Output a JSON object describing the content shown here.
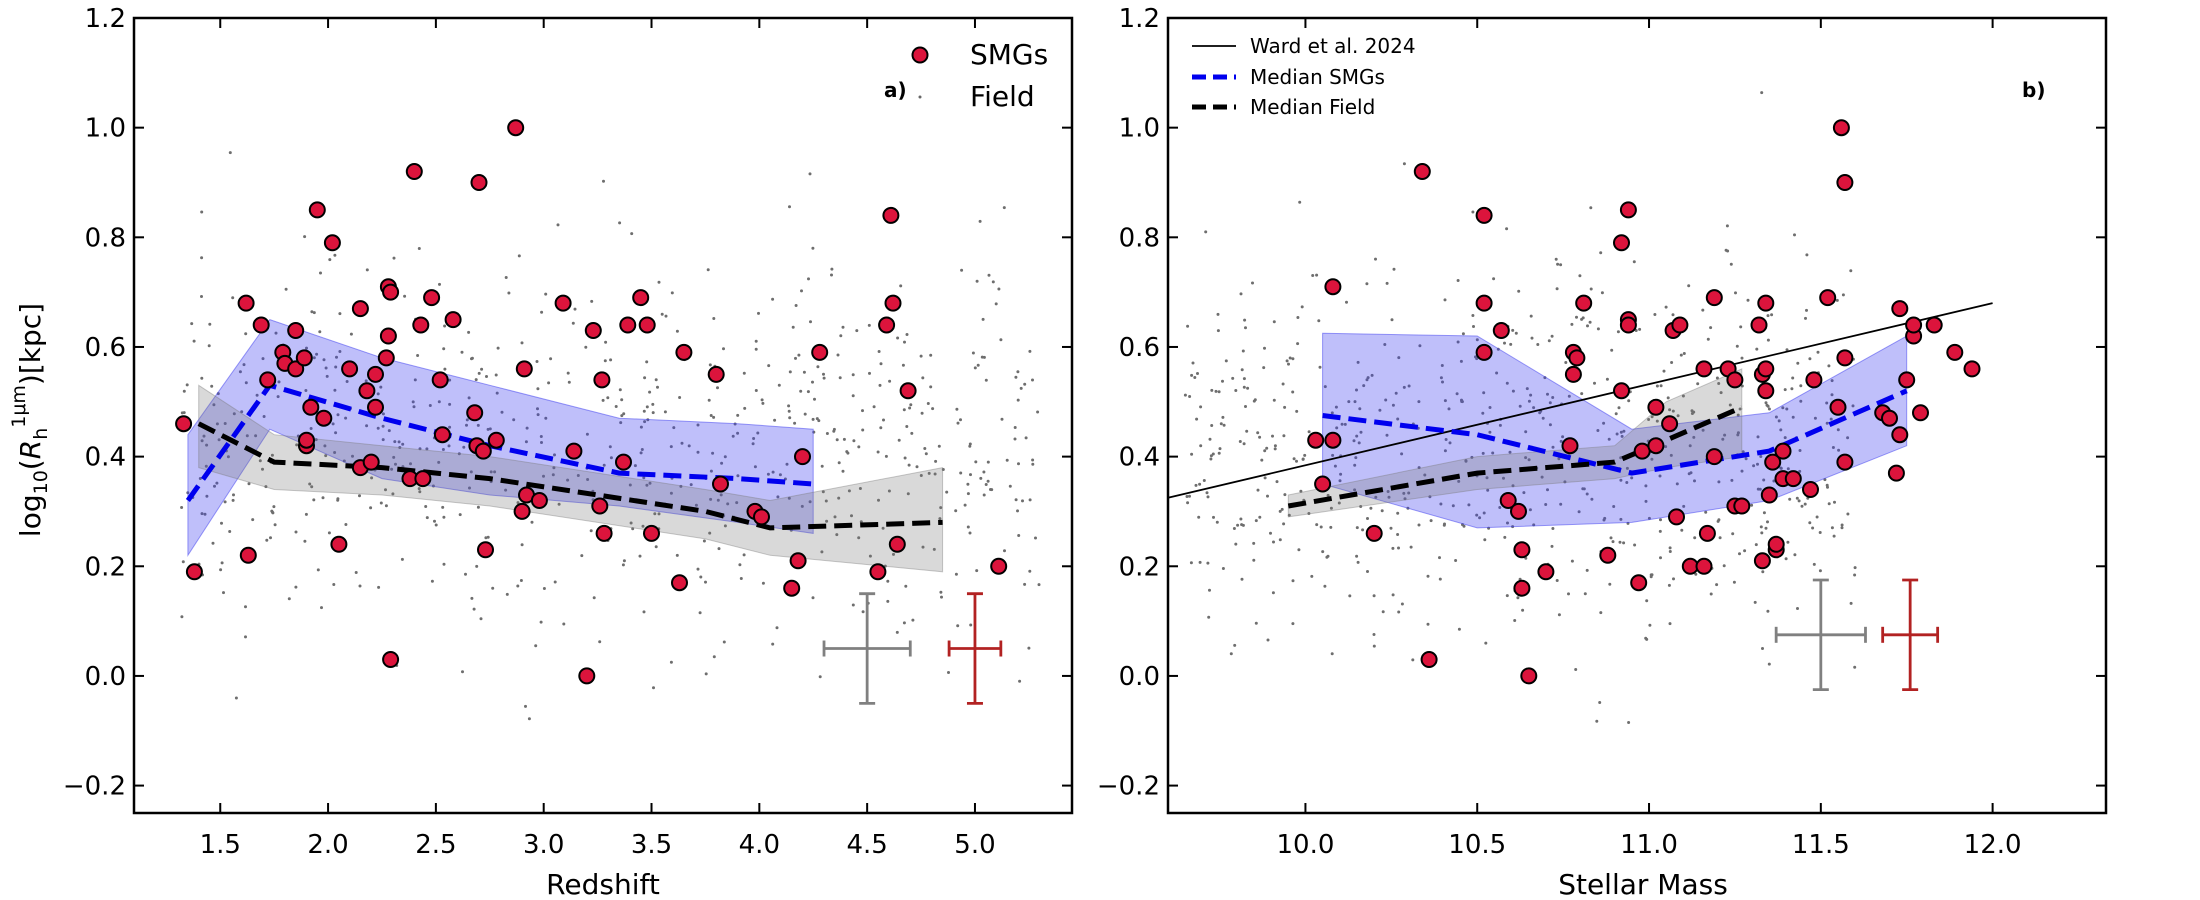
{
  "chart_data": [
    {
      "type": "scatter",
      "panel": "a",
      "panel_label": "a)",
      "xlabel": "Redshift",
      "ylabel": "log10(R_h^1μm)[kpc]",
      "xlim": [
        1.1,
        5.45
      ],
      "ylim": [
        -0.25,
        1.2
      ],
      "xticks": [
        1.5,
        2.0,
        2.5,
        3.0,
        3.5,
        4.0,
        4.5,
        5.0
      ],
      "xtick_labels": [
        "1.5",
        "2.0",
        "2.5",
        "3.0",
        "3.5",
        "4.0",
        "4.5",
        "5.0"
      ],
      "yticks": [
        -0.2,
        0.0,
        0.2,
        0.4,
        0.6,
        0.8,
        1.0,
        1.2
      ],
      "ytick_labels": [
        "−0.2",
        "0.0",
        "0.2",
        "0.4",
        "0.6",
        "0.8",
        "1.0",
        "1.2"
      ],
      "legend": {
        "position": "top-right",
        "entries": [
          "SMGs",
          "Field"
        ]
      },
      "smgs": [
        [
          1.33,
          0.46
        ],
        [
          1.38,
          0.19
        ],
        [
          1.62,
          0.68
        ],
        [
          1.63,
          0.22
        ],
        [
          1.69,
          0.64
        ],
        [
          1.72,
          0.54
        ],
        [
          1.79,
          0.59
        ],
        [
          1.8,
          0.57
        ],
        [
          1.85,
          0.56
        ],
        [
          1.85,
          0.63
        ],
        [
          1.89,
          0.58
        ],
        [
          1.9,
          0.42
        ],
        [
          1.9,
          0.43
        ],
        [
          1.92,
          0.49
        ],
        [
          1.95,
          0.85
        ],
        [
          1.98,
          0.47
        ],
        [
          2.02,
          0.79
        ],
        [
          2.05,
          0.24
        ],
        [
          2.1,
          0.56
        ],
        [
          2.15,
          0.67
        ],
        [
          2.15,
          0.38
        ],
        [
          2.18,
          0.52
        ],
        [
          2.2,
          0.39
        ],
        [
          2.22,
          0.49
        ],
        [
          2.22,
          0.55
        ],
        [
          2.27,
          0.58
        ],
        [
          2.28,
          0.62
        ],
        [
          2.28,
          0.71
        ],
        [
          2.29,
          0.7
        ],
        [
          2.29,
          0.03
        ],
        [
          2.38,
          0.36
        ],
        [
          2.4,
          0.92
        ],
        [
          2.43,
          0.64
        ],
        [
          2.44,
          0.36
        ],
        [
          2.48,
          0.69
        ],
        [
          2.52,
          0.54
        ],
        [
          2.53,
          0.44
        ],
        [
          2.58,
          0.65
        ],
        [
          2.68,
          0.48
        ],
        [
          2.69,
          0.42
        ],
        [
          2.7,
          0.9
        ],
        [
          2.72,
          0.41
        ],
        [
          2.73,
          0.23
        ],
        [
          2.78,
          0.43
        ],
        [
          2.87,
          1.0
        ],
        [
          2.9,
          0.3
        ],
        [
          2.91,
          0.56
        ],
        [
          2.92,
          0.33
        ],
        [
          2.98,
          0.32
        ],
        [
          3.09,
          0.68
        ],
        [
          3.14,
          0.41
        ],
        [
          3.2,
          0.0
        ],
        [
          3.23,
          0.63
        ],
        [
          3.26,
          0.31
        ],
        [
          3.27,
          0.54
        ],
        [
          3.28,
          0.26
        ],
        [
          3.37,
          0.39
        ],
        [
          3.39,
          0.64
        ],
        [
          3.45,
          0.69
        ],
        [
          3.48,
          0.64
        ],
        [
          3.5,
          0.26
        ],
        [
          3.63,
          0.17
        ],
        [
          3.65,
          0.59
        ],
        [
          3.8,
          0.55
        ],
        [
          3.82,
          0.35
        ],
        [
          3.98,
          0.3
        ],
        [
          4.01,
          0.29
        ],
        [
          4.15,
          0.16
        ],
        [
          4.18,
          0.21
        ],
        [
          4.2,
          0.4
        ],
        [
          4.28,
          0.59
        ],
        [
          4.55,
          0.19
        ],
        [
          4.59,
          0.64
        ],
        [
          4.61,
          0.84
        ],
        [
          4.62,
          0.68
        ],
        [
          4.64,
          0.24
        ],
        [
          4.69,
          0.52
        ],
        [
          5.11,
          0.2
        ]
      ],
      "series": [
        {
          "name": "Median SMGs",
          "color": "#0000ee",
          "style": "dashed",
          "x": [
            1.35,
            1.73,
            2.25,
            2.75,
            3.35,
            3.9,
            4.25
          ],
          "y": [
            0.32,
            0.53,
            0.47,
            0.42,
            0.37,
            0.36,
            0.35
          ],
          "band_low": [
            0.22,
            0.45,
            0.36,
            0.33,
            0.31,
            0.28,
            0.26
          ],
          "band_high": [
            0.44,
            0.65,
            0.58,
            0.53,
            0.47,
            0.46,
            0.45
          ]
        },
        {
          "name": "Median Field",
          "color": "#000000",
          "style": "dashed",
          "x": [
            1.4,
            1.75,
            2.25,
            2.75,
            3.25,
            3.75,
            4.05,
            4.85
          ],
          "y": [
            0.46,
            0.39,
            0.38,
            0.36,
            0.33,
            0.3,
            0.27,
            0.28
          ],
          "band_low": [
            0.38,
            0.34,
            0.33,
            0.31,
            0.28,
            0.25,
            0.22,
            0.19
          ],
          "band_high": [
            0.53,
            0.44,
            0.42,
            0.4,
            0.37,
            0.34,
            0.32,
            0.38
          ]
        }
      ],
      "errorbars": [
        {
          "name": "Field typical error",
          "color": "#808080",
          "x": 4.5,
          "y": 0.05,
          "xerr": 0.2,
          "yerr": 0.1
        },
        {
          "name": "SMG typical error",
          "color": "#b22222",
          "x": 5.0,
          "y": 0.05,
          "xerr": 0.12,
          "yerr": 0.1
        }
      ],
      "field_points": {
        "count": 650,
        "x_range": [
          1.3,
          5.3
        ],
        "y_center": 0.42,
        "y_scatter": 0.18
      }
    },
    {
      "type": "scatter",
      "panel": "b",
      "panel_label": "b)",
      "xlabel": "Stellar Mass",
      "ylabel": "",
      "xlim": [
        9.6,
        12.33
      ],
      "ylim": [
        -0.25,
        1.2
      ],
      "xticks": [
        10.0,
        10.5,
        11.0,
        11.5,
        12.0
      ],
      "xtick_labels": [
        "10.0",
        "10.5",
        "11.0",
        "11.5",
        "12.0"
      ],
      "yticks": [
        -0.2,
        0.0,
        0.2,
        0.4,
        0.6,
        0.8,
        1.0,
        1.2
      ],
      "ytick_labels": [
        "−0.2",
        "0.0",
        "0.2",
        "0.4",
        "0.6",
        "0.8",
        "1.0",
        "1.2"
      ],
      "legend": {
        "position": "top-left",
        "entries": [
          "Ward et al. 2024",
          "Median SMGs",
          "Median Field"
        ]
      },
      "smgs": [
        [
          10.03,
          0.43
        ],
        [
          10.05,
          0.35
        ],
        [
          10.08,
          0.43
        ],
        [
          10.08,
          0.71
        ],
        [
          10.2,
          0.26
        ],
        [
          10.34,
          0.92
        ],
        [
          10.36,
          0.03
        ],
        [
          10.52,
          0.84
        ],
        [
          10.52,
          0.68
        ],
        [
          10.52,
          0.59
        ],
        [
          10.57,
          0.63
        ],
        [
          10.59,
          0.32
        ],
        [
          10.62,
          0.3
        ],
        [
          10.63,
          0.23
        ],
        [
          10.63,
          0.16
        ],
        [
          10.65,
          0.0
        ],
        [
          10.7,
          0.19
        ],
        [
          10.77,
          0.42
        ],
        [
          10.78,
          0.55
        ],
        [
          10.78,
          0.59
        ],
        [
          10.79,
          0.58
        ],
        [
          10.81,
          0.68
        ],
        [
          10.88,
          0.22
        ],
        [
          10.92,
          0.52
        ],
        [
          10.92,
          0.79
        ],
        [
          10.94,
          0.85
        ],
        [
          10.94,
          0.65
        ],
        [
          10.94,
          0.64
        ],
        [
          10.97,
          0.17
        ],
        [
          10.98,
          0.41
        ],
        [
          11.02,
          0.42
        ],
        [
          11.02,
          0.49
        ],
        [
          11.06,
          0.46
        ],
        [
          11.07,
          0.63
        ],
        [
          11.08,
          0.29
        ],
        [
          11.09,
          0.64
        ],
        [
          11.12,
          0.2
        ],
        [
          11.16,
          0.2
        ],
        [
          11.16,
          0.56
        ],
        [
          11.17,
          0.26
        ],
        [
          11.19,
          0.69
        ],
        [
          11.19,
          0.4
        ],
        [
          11.23,
          0.56
        ],
        [
          11.25,
          0.54
        ],
        [
          11.25,
          0.31
        ],
        [
          11.27,
          0.31
        ],
        [
          11.32,
          0.64
        ],
        [
          11.33,
          0.21
        ],
        [
          11.33,
          0.55
        ],
        [
          11.34,
          0.56
        ],
        [
          11.34,
          0.52
        ],
        [
          11.34,
          0.68
        ],
        [
          11.35,
          0.33
        ],
        [
          11.36,
          0.39
        ],
        [
          11.37,
          0.23
        ],
        [
          11.37,
          0.24
        ],
        [
          11.39,
          0.36
        ],
        [
          11.39,
          0.41
        ],
        [
          11.42,
          0.36
        ],
        [
          11.47,
          0.34
        ],
        [
          11.48,
          0.54
        ],
        [
          11.52,
          0.69
        ],
        [
          11.55,
          0.49
        ],
        [
          11.56,
          1.0
        ],
        [
          11.57,
          0.9
        ],
        [
          11.57,
          0.58
        ],
        [
          11.57,
          0.39
        ],
        [
          11.68,
          0.48
        ],
        [
          11.7,
          0.47
        ],
        [
          11.72,
          0.37
        ],
        [
          11.73,
          0.67
        ],
        [
          11.73,
          0.44
        ],
        [
          11.75,
          0.54
        ],
        [
          11.77,
          0.62
        ],
        [
          11.77,
          0.64
        ],
        [
          11.79,
          0.48
        ],
        [
          11.83,
          0.64
        ],
        [
          11.89,
          0.59
        ],
        [
          11.94,
          0.56
        ]
      ],
      "series": [
        {
          "name": "Ward et al. 2024",
          "color": "#000000",
          "style": "solid",
          "x": [
            9.6,
            12.0
          ],
          "y": [
            0.325,
            0.68
          ]
        },
        {
          "name": "Median SMGs",
          "color": "#0000ee",
          "style": "dashed",
          "x": [
            10.05,
            10.5,
            10.95,
            11.35,
            11.75
          ],
          "y": [
            0.475,
            0.44,
            0.37,
            0.41,
            0.52
          ],
          "band_low": [
            0.35,
            0.27,
            0.28,
            0.32,
            0.42
          ],
          "band_high": [
            0.625,
            0.62,
            0.45,
            0.48,
            0.62
          ]
        },
        {
          "name": "Median Field",
          "color": "#000000",
          "style": "dashed",
          "x": [
            9.95,
            10.5,
            10.9,
            11.05,
            11.27
          ],
          "y": [
            0.31,
            0.37,
            0.39,
            0.43,
            0.49
          ],
          "band_low": [
            0.29,
            0.34,
            0.36,
            0.38,
            0.4
          ],
          "band_high": [
            0.33,
            0.4,
            0.42,
            0.5,
            0.56
          ]
        }
      ],
      "errorbars": [
        {
          "name": "Field typical error",
          "color": "#808080",
          "x": 11.5,
          "y": 0.075,
          "xerr": 0.13,
          "yerr": 0.1
        },
        {
          "name": "SMG typical error",
          "color": "#b22222",
          "x": 11.76,
          "y": 0.075,
          "xerr": 0.08,
          "yerr": 0.1
        }
      ],
      "field_points": {
        "count": 650,
        "x_range": [
          9.65,
          11.6
        ],
        "y_center": 0.4,
        "y_scatter": 0.18
      }
    }
  ]
}
